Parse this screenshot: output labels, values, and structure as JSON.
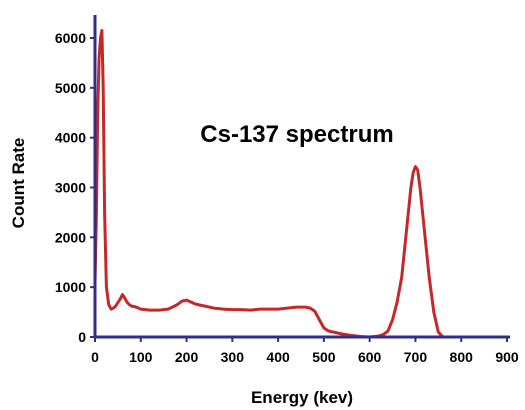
{
  "chart_data": {
    "type": "line",
    "title": "Cs-137 spectrum",
    "xlabel": "Energy (kev)",
    "ylabel": "Count Rate",
    "xlim": [
      0,
      900
    ],
    "ylim": [
      0,
      6500
    ],
    "x_ticks": [
      "0",
      "100",
      "200",
      "300",
      "400",
      "500",
      "600",
      "700",
      "800",
      "900"
    ],
    "y_ticks": [
      "0",
      "1000",
      "2000",
      "3000",
      "4000",
      "5000",
      "6000"
    ],
    "grid": false,
    "legend": "none",
    "colors": {
      "line": "#c62828",
      "axis": "#2f2f86"
    },
    "series": [
      {
        "x": [
          0,
          3,
          6,
          9,
          12,
          15,
          18,
          21,
          25,
          30,
          35,
          40,
          45,
          50,
          55,
          60,
          65,
          70,
          75,
          80,
          90,
          100,
          120,
          140,
          160,
          180,
          190,
          200,
          210,
          220,
          240,
          260,
          280,
          300,
          320,
          340,
          360,
          380,
          400,
          420,
          440,
          460,
          470,
          480,
          490,
          500,
          510,
          520,
          540,
          560,
          580,
          600,
          620,
          630,
          640,
          650,
          660,
          670,
          680,
          690,
          695,
          700,
          705,
          710,
          720,
          730,
          740,
          750,
          760,
          770,
          780,
          800
        ],
        "y": [
          1100,
          2500,
          4500,
          5600,
          6000,
          6150,
          5000,
          2500,
          1000,
          650,
          560,
          580,
          620,
          690,
          760,
          850,
          780,
          700,
          650,
          620,
          600,
          560,
          540,
          540,
          560,
          650,
          720,
          740,
          700,
          660,
          620,
          580,
          560,
          550,
          550,
          540,
          560,
          560,
          560,
          580,
          600,
          600,
          580,
          520,
          350,
          180,
          120,
          100,
          60,
          30,
          10,
          0,
          20,
          50,
          120,
          350,
          700,
          1200,
          2100,
          3000,
          3300,
          3420,
          3350,
          3000,
          2100,
          1200,
          500,
          100,
          0,
          0,
          0,
          0
        ]
      }
    ]
  }
}
